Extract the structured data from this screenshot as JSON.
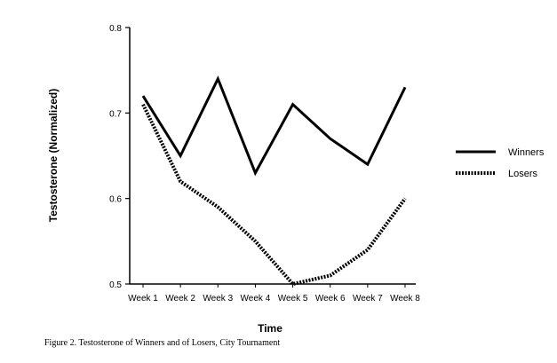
{
  "chart_data": {
    "type": "line",
    "xlabel": "Time",
    "ylabel": "Testosterone   (Normalized)",
    "categories": [
      "Week 1",
      "Week 2",
      "Week 3",
      "Week 4",
      "Week 5",
      "Week 6",
      "Week 7",
      "Week 8"
    ],
    "ylim": [
      0.5,
      0.8
    ],
    "yticks": [
      "0.5",
      "0.6",
      "0.7",
      "0.8"
    ],
    "grid": false,
    "legend_position": "right",
    "series": [
      {
        "name": "Winners",
        "style": "solid",
        "color": "#000000",
        "values": [
          0.72,
          0.65,
          0.74,
          0.63,
          0.71,
          0.67,
          0.64,
          0.73
        ]
      },
      {
        "name": "Losers",
        "style": "dotted",
        "color": "#000000",
        "values": [
          0.71,
          0.62,
          0.59,
          0.55,
          0.5,
          0.51,
          0.54,
          0.6
        ]
      }
    ]
  },
  "caption": "Figure 2.  Testosterone of Winners and of Losers, City Tournament"
}
